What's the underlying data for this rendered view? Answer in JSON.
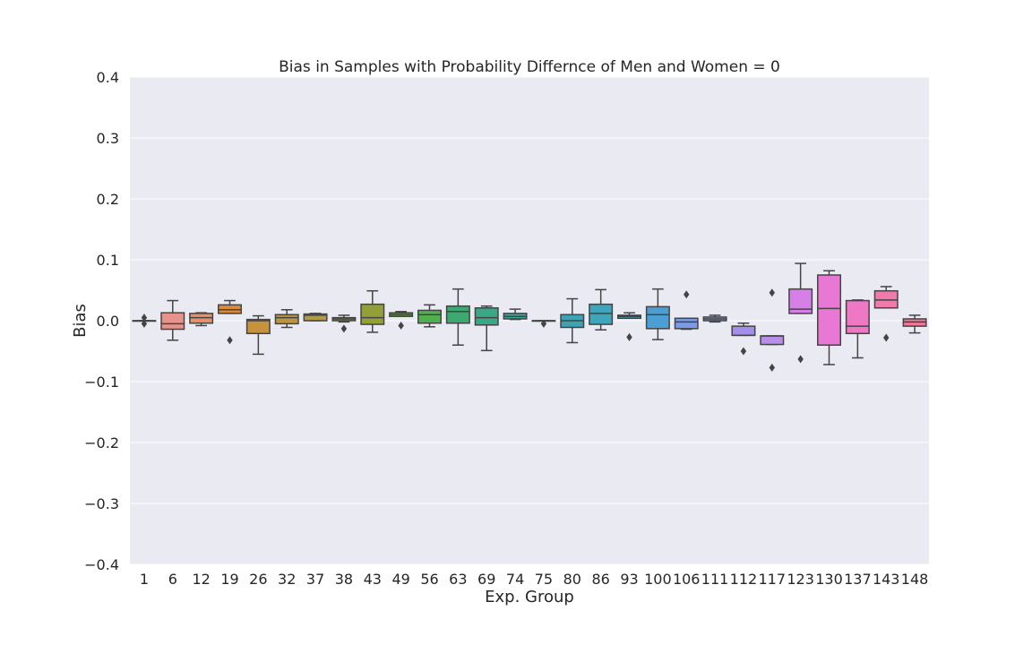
{
  "chart_data": {
    "type": "box",
    "title": "Bias in Samples with Probability Differnce of Men and Women = 0",
    "xlabel": "Exp. Group",
    "ylabel": "Bias",
    "ylim": [
      -0.4,
      0.4
    ],
    "yticks": [
      0.4,
      0.3,
      0.2,
      0.1,
      0.0,
      -0.1,
      -0.2,
      -0.3,
      -0.4
    ],
    "ytick_labels": [
      "0.4",
      "0.3",
      "0.2",
      "0.1",
      "0.0",
      "−0.1",
      "−0.2",
      "−0.3",
      "−0.4"
    ],
    "grid": true,
    "background": "#eaeaf2",
    "boxes": [
      {
        "group": "1",
        "color": "#f77189",
        "q1": 0.0,
        "median": 0.0,
        "q3": 0.0,
        "whislo": 0.0,
        "whishi": 0.0,
        "fliers": [
          0.005,
          -0.005
        ]
      },
      {
        "group": "6",
        "color": "#e7938a",
        "q1": -0.014,
        "median": -0.005,
        "q3": 0.013,
        "whislo": -0.032,
        "whishi": 0.033,
        "fliers": []
      },
      {
        "group": "12",
        "color": "#e5916c",
        "q1": -0.004,
        "median": 0.005,
        "q3": 0.012,
        "whislo": -0.008,
        "whishi": 0.013,
        "fliers": []
      },
      {
        "group": "19",
        "color": "#dd8a36",
        "q1": 0.012,
        "median": 0.018,
        "q3": 0.026,
        "whislo": 0.012,
        "whishi": 0.033,
        "fliers": [
          -0.032
        ]
      },
      {
        "group": "26",
        "color": "#c7923c",
        "q1": -0.021,
        "median": 0.0,
        "q3": 0.002,
        "whislo": -0.055,
        "whishi": 0.008,
        "fliers": []
      },
      {
        "group": "32",
        "color": "#bc9543",
        "q1": -0.005,
        "median": 0.005,
        "q3": 0.01,
        "whislo": -0.011,
        "whishi": 0.018,
        "fliers": []
      },
      {
        "group": "37",
        "color": "#b09b45",
        "q1": 0.0,
        "median": 0.009,
        "q3": 0.011,
        "whislo": 0.0,
        "whishi": 0.012,
        "fliers": []
      },
      {
        "group": "38",
        "color": "#a19c3a",
        "q1": 0.0,
        "median": 0.003,
        "q3": 0.005,
        "whislo": -0.002,
        "whishi": 0.009,
        "fliers": [
          -0.013
        ]
      },
      {
        "group": "43",
        "color": "#93a03a",
        "q1": -0.006,
        "median": 0.005,
        "q3": 0.027,
        "whislo": -0.019,
        "whishi": 0.049,
        "fliers": []
      },
      {
        "group": "49",
        "color": "#6aa746",
        "q1": 0.007,
        "median": 0.01,
        "q3": 0.013,
        "whislo": 0.007,
        "whishi": 0.015,
        "fliers": [
          -0.008
        ]
      },
      {
        "group": "56",
        "color": "#50b050",
        "q1": -0.004,
        "median": 0.01,
        "q3": 0.017,
        "whislo": -0.01,
        "whishi": 0.026,
        "fliers": []
      },
      {
        "group": "63",
        "color": "#3ba970",
        "q1": -0.004,
        "median": 0.015,
        "q3": 0.024,
        "whislo": -0.04,
        "whishi": 0.052,
        "fliers": []
      },
      {
        "group": "69",
        "color": "#3aa886",
        "q1": -0.007,
        "median": 0.005,
        "q3": 0.021,
        "whislo": -0.049,
        "whishi": 0.024,
        "fliers": []
      },
      {
        "group": "74",
        "color": "#3aa798",
        "q1": 0.003,
        "median": 0.007,
        "q3": 0.012,
        "whislo": 0.002,
        "whishi": 0.019,
        "fliers": []
      },
      {
        "group": "75",
        "color": "#3aa6a6",
        "q1": 0.0,
        "median": 0.0,
        "q3": 0.0,
        "whislo": 0.0,
        "whishi": 0.0,
        "fliers": [
          -0.005
        ]
      },
      {
        "group": "80",
        "color": "#3ca3b3",
        "q1": -0.011,
        "median": 0.0,
        "q3": 0.01,
        "whislo": -0.036,
        "whishi": 0.036,
        "fliers": []
      },
      {
        "group": "86",
        "color": "#3ea5bb",
        "q1": -0.006,
        "median": 0.012,
        "q3": 0.027,
        "whislo": -0.015,
        "whishi": 0.051,
        "fliers": []
      },
      {
        "group": "93",
        "color": "#40a2c6",
        "q1": 0.004,
        "median": 0.007,
        "q3": 0.009,
        "whislo": 0.004,
        "whishi": 0.013,
        "fliers": [
          -0.027
        ]
      },
      {
        "group": "100",
        "color": "#4aa0d5",
        "q1": -0.013,
        "median": 0.01,
        "q3": 0.023,
        "whislo": -0.031,
        "whishi": 0.052,
        "fliers": []
      },
      {
        "group": "106",
        "color": "#7b9be8",
        "q1": -0.013,
        "median": -0.002,
        "q3": 0.004,
        "whislo": -0.014,
        "whishi": 0.004,
        "fliers": [
          0.043
        ]
      },
      {
        "group": "111",
        "color": "#8aa0ed",
        "q1": 0.0,
        "median": 0.003,
        "q3": 0.006,
        "whislo": -0.002,
        "whishi": 0.009,
        "fliers": []
      },
      {
        "group": "112",
        "color": "#a48ee9",
        "q1": -0.024,
        "median": -0.024,
        "q3": -0.009,
        "whislo": -0.024,
        "whishi": -0.004,
        "fliers": [
          -0.05
        ]
      },
      {
        "group": "117",
        "color": "#b98eeb",
        "q1": -0.039,
        "median": -0.025,
        "q3": -0.025,
        "whislo": -0.039,
        "whishi": -0.025,
        "fliers": [
          0.046,
          -0.077
        ]
      },
      {
        "group": "123",
        "color": "#d67fe9",
        "q1": 0.012,
        "median": 0.019,
        "q3": 0.052,
        "whislo": 0.012,
        "whishi": 0.094,
        "fliers": [
          -0.063
        ]
      },
      {
        "group": "130",
        "color": "#e878d4",
        "q1": -0.04,
        "median": 0.02,
        "q3": 0.075,
        "whislo": -0.072,
        "whishi": 0.082,
        "fliers": []
      },
      {
        "group": "137",
        "color": "#ee78c4",
        "q1": -0.021,
        "median": -0.009,
        "q3": 0.033,
        "whislo": -0.061,
        "whishi": 0.034,
        "fliers": []
      },
      {
        "group": "143",
        "color": "#f07aab",
        "q1": 0.021,
        "median": 0.034,
        "q3": 0.049,
        "whislo": 0.021,
        "whishi": 0.056,
        "fliers": [
          -0.028
        ]
      },
      {
        "group": "148",
        "color": "#f37799",
        "q1": -0.009,
        "median": -0.002,
        "q3": 0.003,
        "whislo": -0.02,
        "whishi": 0.009,
        "fliers": []
      }
    ]
  }
}
